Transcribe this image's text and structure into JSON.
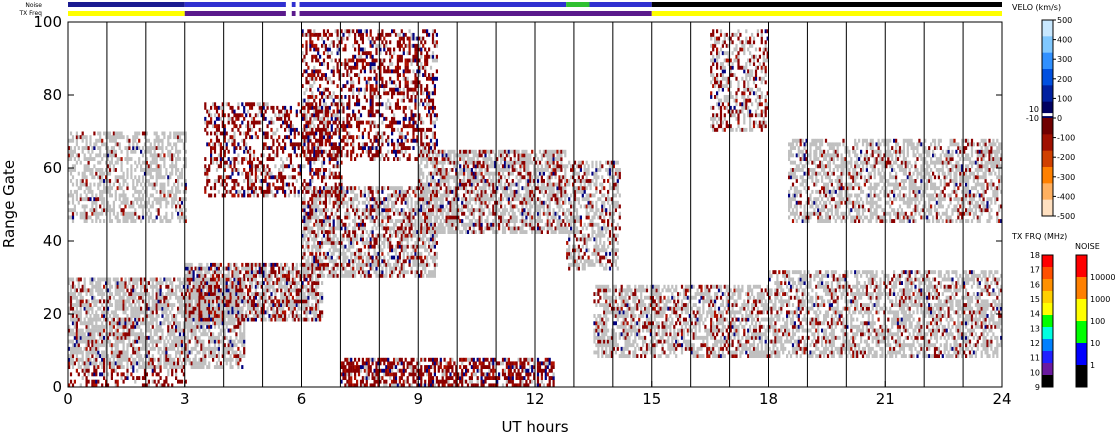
{
  "chart_data": {
    "type": "heatmap",
    "xlabel": "UT hours",
    "ylabel": "Range Gate",
    "xlim": [
      0,
      24
    ],
    "ylim": [
      0,
      100
    ],
    "x_ticks": [
      "0",
      "3",
      "6",
      "9",
      "12",
      "15",
      "18",
      "21",
      "24"
    ],
    "y_ticks": [
      "0",
      "20",
      "40",
      "60",
      "80",
      "100"
    ],
    "ground_scatter_color": "#c0c0c0",
    "top_bars": {
      "noise_label": "Noise",
      "txfreq_label": "TX Freq",
      "noise_segments": [
        {
          "from": 0,
          "to": 3,
          "color": "#1a1a90"
        },
        {
          "from": 3,
          "to": 5.6,
          "color": "#3030d0"
        },
        {
          "from": 5.6,
          "to": 5.75,
          "color": "#ffffff"
        },
        {
          "from": 5.75,
          "to": 5.85,
          "color": "#3030d0"
        },
        {
          "from": 5.85,
          "to": 5.95,
          "color": "#ffffff"
        },
        {
          "from": 5.95,
          "to": 12.8,
          "color": "#3030d0"
        },
        {
          "from": 12.8,
          "to": 13.4,
          "color": "#30c030"
        },
        {
          "from": 13.4,
          "to": 15,
          "color": "#3030d0"
        },
        {
          "from": 15,
          "to": 24,
          "color": "#000000"
        }
      ],
      "txfreq_segments": [
        {
          "from": 0,
          "to": 3,
          "color": "#ffff00"
        },
        {
          "from": 3,
          "to": 5.6,
          "color": "#5a1a8c"
        },
        {
          "from": 5.6,
          "to": 5.75,
          "color": "#ffffff"
        },
        {
          "from": 5.75,
          "to": 5.85,
          "color": "#5a1a8c"
        },
        {
          "from": 5.85,
          "to": 5.95,
          "color": "#ffffff"
        },
        {
          "from": 5.95,
          "to": 15,
          "color": "#5a1a8c"
        },
        {
          "from": 15,
          "to": 24,
          "color": "#ffff00"
        }
      ]
    },
    "velo_colorbar": {
      "title": "VELO (km/s)",
      "ticks": [
        "500",
        "400",
        "300",
        "200",
        "100",
        "0",
        "-100",
        "-200",
        "-300",
        "-400",
        "-500"
      ],
      "extra_ticks": [
        "10",
        "-10"
      ],
      "colors": [
        "#c8e8ff",
        "#80c8ff",
        "#3090ff",
        "#0050e0",
        "#0020a0",
        "#000060",
        "#700000",
        "#a01000",
        "#d04000",
        "#ff8000",
        "#ffb060",
        "#ffe0c0"
      ]
    },
    "txfrq_colorbar": {
      "title": "TX FRQ (MHz)",
      "ticks": [
        "18",
        "17",
        "16",
        "15",
        "14",
        "13",
        "12",
        "11",
        "10",
        "9"
      ],
      "colors": [
        "#ff0000",
        "#ff5000",
        "#ff9000",
        "#ffd000",
        "#ffff00",
        "#00ff00",
        "#00ffe0",
        "#0080ff",
        "#2020ff",
        "#6a1aa0",
        "#000000"
      ]
    },
    "noise_colorbar": {
      "title": "NOISE",
      "ticks": [
        "10000",
        "1000",
        "100",
        "10",
        "1"
      ],
      "colors": [
        "#ff0000",
        "#ff8000",
        "#ffff00",
        "#00ff00",
        "#0000ff",
        "#000000"
      ]
    },
    "bands": [
      {
        "x0": 0.0,
        "x1": 4.5,
        "y0": 5,
        "y1": 30,
        "gs": 0.55,
        "ion": 0.35
      },
      {
        "x0": 0.0,
        "x1": 3.0,
        "y0": 45,
        "y1": 70,
        "gs": 0.45,
        "ion": 0.12
      },
      {
        "x0": 3.0,
        "x1": 6.5,
        "y0": 18,
        "y1": 34,
        "gs": 0.4,
        "ion": 0.55
      },
      {
        "x0": 3.5,
        "x1": 7.0,
        "y0": 52,
        "y1": 78,
        "gs": 0.1,
        "ion": 0.35
      },
      {
        "x0": 6.0,
        "x1": 9.5,
        "y0": 62,
        "y1": 98,
        "gs": 0.08,
        "ion": 0.4
      },
      {
        "x0": 6.0,
        "x1": 9.5,
        "y0": 30,
        "y1": 55,
        "gs": 0.4,
        "ion": 0.4
      },
      {
        "x0": 9.0,
        "x1": 12.8,
        "y0": 42,
        "y1": 65,
        "gs": 0.45,
        "ion": 0.4
      },
      {
        "x0": 12.8,
        "x1": 14.2,
        "y0": 32,
        "y1": 62,
        "gs": 0.35,
        "ion": 0.25
      },
      {
        "x0": 13.5,
        "x1": 18.0,
        "y0": 8,
        "y1": 28,
        "gs": 0.45,
        "ion": 0.3
      },
      {
        "x0": 16.5,
        "x1": 18.0,
        "y0": 70,
        "y1": 98,
        "gs": 0.25,
        "ion": 0.3
      },
      {
        "x0": 18.5,
        "x1": 24.0,
        "y0": 45,
        "y1": 68,
        "gs": 0.45,
        "ion": 0.2
      },
      {
        "x0": 18.0,
        "x1": 24.0,
        "y0": 8,
        "y1": 32,
        "gs": 0.45,
        "ion": 0.25
      },
      {
        "x0": 7.0,
        "x1": 12.5,
        "y0": 0,
        "y1": 8,
        "gs": 0.1,
        "ion": 0.6
      },
      {
        "x0": 0.0,
        "x1": 3.0,
        "y0": 0,
        "y1": 5,
        "gs": 0.05,
        "ion": 0.25
      }
    ]
  }
}
